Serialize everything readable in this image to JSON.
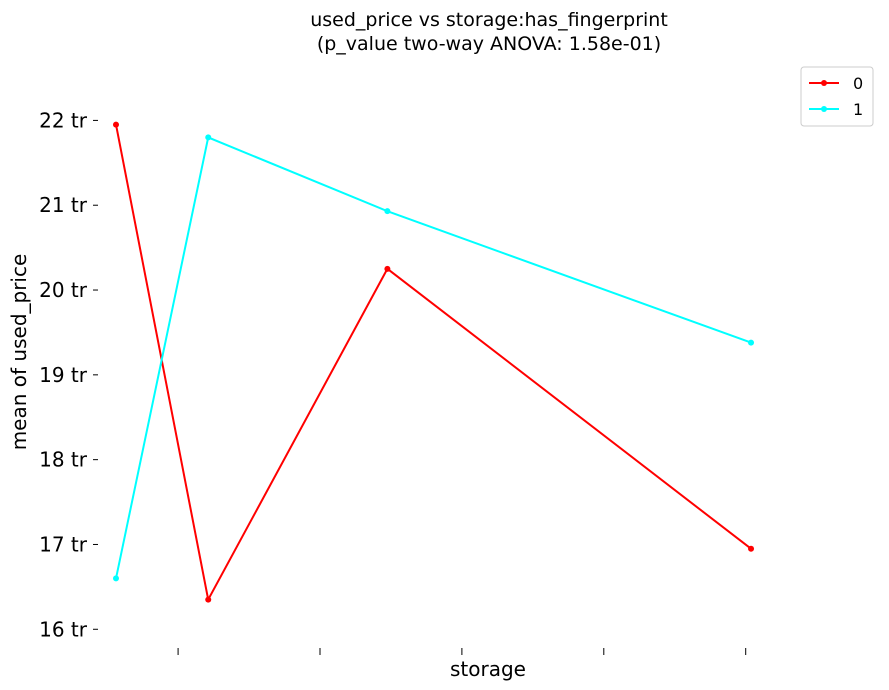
{
  "chart_data": {
    "type": "line",
    "title_line1": "used_price vs storage:has_fingerprint",
    "title_line2": "(p_value two-way ANOVA: 1.58e-01)",
    "xlabel": "storage",
    "ylabel": "mean of used_price",
    "y_tick_labels": [
      "16 tr",
      "17 tr",
      "18 tr",
      "19 tr",
      "20 tr",
      "21 tr",
      "22 tr"
    ],
    "y_ticks": [
      16,
      17,
      18,
      19,
      20,
      21,
      22
    ],
    "ylim": [
      15.85,
      22.5
    ],
    "xlim": [
      0,
      4.2
    ],
    "x_tick_positions": [
      0.35,
      1.15,
      1.95,
      2.75,
      3.55
    ],
    "grid": false,
    "legend_position": "top-right",
    "series": [
      {
        "name": "0",
        "color": "#ff0000",
        "x": [
          0,
          0.52,
          1.53,
          3.58
        ],
        "y": [
          21.95,
          16.35,
          20.25,
          16.95
        ]
      },
      {
        "name": "1",
        "color": "#00ffff",
        "x": [
          0,
          0.52,
          1.53,
          3.58
        ],
        "y": [
          16.6,
          21.8,
          20.93,
          19.38
        ]
      }
    ]
  }
}
